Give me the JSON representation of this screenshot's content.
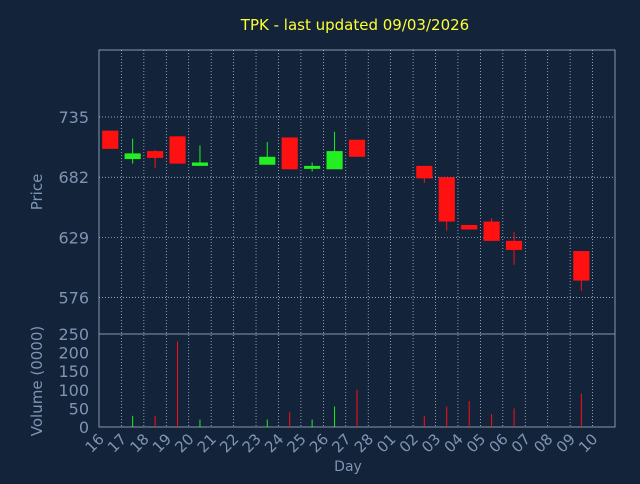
{
  "chart_data": {
    "type": "candlestick",
    "title": "TPK - last updated 09/03/2026",
    "xlabel": "Day",
    "price_panel": {
      "ylabel": "Price",
      "yticks": [
        576,
        629,
        682,
        735
      ],
      "ylim": [
        544,
        794
      ]
    },
    "volume_panel": {
      "ylabel": "Volume (0000)",
      "yticks": [
        0,
        50,
        100,
        150,
        200,
        250
      ],
      "ylim": [
        0,
        250
      ]
    },
    "x_tick_labels": [
      "16",
      "17",
      "18",
      "19",
      "20",
      "21",
      "22",
      "23",
      "24",
      "25",
      "26",
      "27",
      "28",
      "01",
      "02",
      "03",
      "04",
      "05",
      "06",
      "07",
      "08",
      "09",
      "10"
    ],
    "up_color": "#22ee22",
    "down_color": "#ff1111",
    "candles": [
      {
        "day": "16",
        "open": 723,
        "close": 707,
        "high": 723,
        "low": 707,
        "volume": 0
      },
      {
        "day": "17",
        "open": 698,
        "close": 703,
        "high": 716,
        "low": 694,
        "volume": 30
      },
      {
        "day": "18",
        "open": 705,
        "close": 699,
        "high": 706,
        "low": 690,
        "volume": 30
      },
      {
        "day": "19",
        "open": 718,
        "close": 694,
        "high": 718,
        "low": 694,
        "volume": 230
      },
      {
        "day": "20",
        "open": 692,
        "close": 695,
        "high": 710,
        "low": 692,
        "volume": 20
      },
      {
        "day": "23",
        "open": 693,
        "close": 700,
        "high": 713,
        "low": 693,
        "volume": 20
      },
      {
        "day": "24",
        "open": 717,
        "close": 689,
        "high": 717,
        "low": 689,
        "volume": 40
      },
      {
        "day": "25",
        "open": 690,
        "close": 692,
        "high": 695,
        "low": 687,
        "volume": 20
      },
      {
        "day": "26",
        "open": 689,
        "close": 705,
        "high": 722,
        "low": 689,
        "volume": 55
      },
      {
        "day": "27",
        "open": 715,
        "close": 700,
        "high": 715,
        "low": 700,
        "volume": 100
      },
      {
        "day": "02",
        "open": 692,
        "close": 681,
        "high": 692,
        "low": 677,
        "volume": 30
      },
      {
        "day": "03",
        "open": 682,
        "close": 643,
        "high": 682,
        "low": 635,
        "volume": 55
      },
      {
        "day": "04",
        "open": 640,
        "close": 636,
        "high": 640,
        "low": 636,
        "volume": 70
      },
      {
        "day": "05",
        "open": 643,
        "close": 626,
        "high": 646,
        "low": 626,
        "volume": 35
      },
      {
        "day": "06",
        "open": 626,
        "close": 618,
        "high": 634,
        "low": 605,
        "volume": 50
      },
      {
        "day": "09",
        "open": 617,
        "close": 591,
        "high": 617,
        "low": 582,
        "volume": 90
      }
    ]
  }
}
